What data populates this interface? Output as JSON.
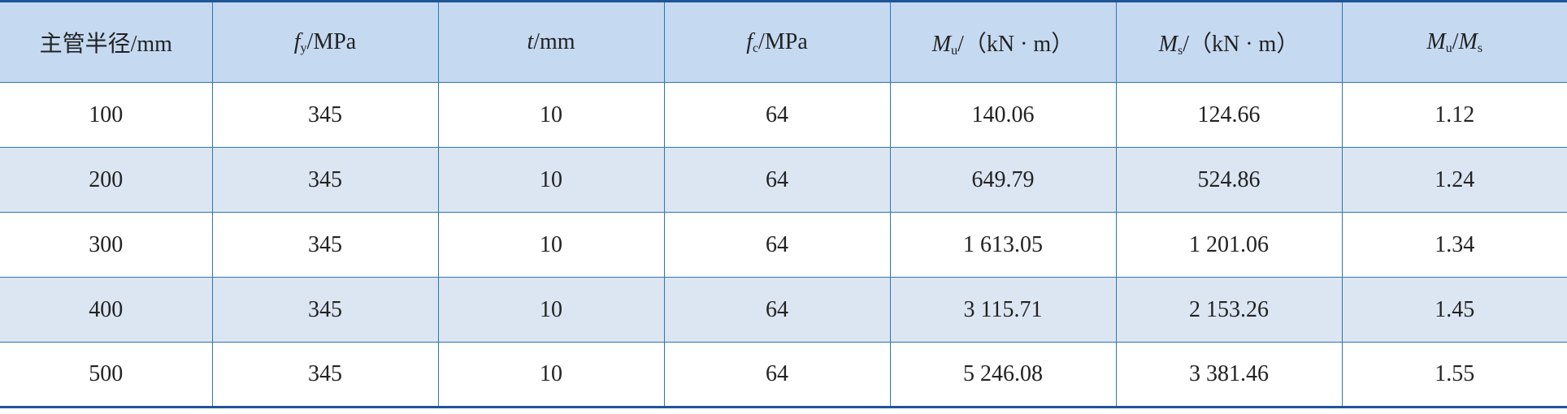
{
  "table": {
    "header": [
      [
        {
          "text": "主管半径/mm"
        }
      ],
      [
        {
          "text": "f",
          "style": "italic"
        },
        {
          "text": "y",
          "style": "sub"
        },
        {
          "text": "/MPa"
        }
      ],
      [
        {
          "text": "t",
          "style": "italic"
        },
        {
          "text": "/mm"
        }
      ],
      [
        {
          "text": "f",
          "style": "italic"
        },
        {
          "text": "c",
          "style": "sub"
        },
        {
          "text": "/MPa"
        }
      ],
      [
        {
          "text": "M",
          "style": "italic"
        },
        {
          "text": "u",
          "style": "sub"
        },
        {
          "text": "/（kN · m）"
        }
      ],
      [
        {
          "text": "M",
          "style": "italic"
        },
        {
          "text": "s",
          "style": "sub"
        },
        {
          "text": "/（kN · m）"
        }
      ],
      [
        {
          "text": "M",
          "style": "italic"
        },
        {
          "text": "u",
          "style": "sub"
        },
        {
          "text": "/"
        },
        {
          "text": "M",
          "style": "italic"
        },
        {
          "text": "s",
          "style": "sub"
        }
      ]
    ],
    "rows": [
      [
        "100",
        "345",
        "10",
        "64",
        "140.06",
        "124.66",
        "1.12"
      ],
      [
        "200",
        "345",
        "10",
        "64",
        "649.79",
        "524.86",
        "1.24"
      ],
      [
        "300",
        "345",
        "10",
        "64",
        "1 613.05",
        "1 201.06",
        "1.34"
      ],
      [
        "400",
        "345",
        "10",
        "64",
        "3 115.71",
        "2 153.26",
        "1.45"
      ],
      [
        "500",
        "345",
        "10",
        "64",
        "5 246.08",
        "3 381.46",
        "1.55"
      ]
    ]
  }
}
